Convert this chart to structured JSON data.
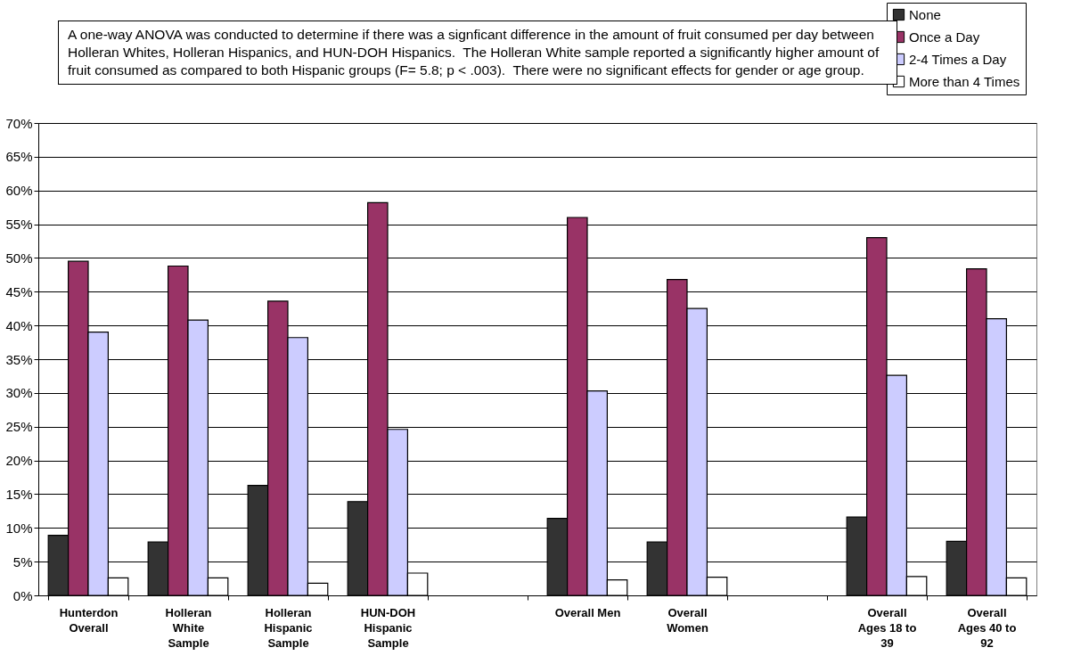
{
  "chart_data": {
    "type": "bar",
    "categories": [
      "Hunterdon Overall",
      "Holleran White Sample",
      "Holleran Hispanic Sample",
      "HUN-DOH Hispanic Sample",
      null,
      "Overall Men",
      "Overall Women",
      null,
      "Overall Ages 18 to 39",
      "Overall Ages 40 to 92"
    ],
    "series": [
      {
        "name": "None",
        "color": "#333333",
        "values": [
          8.9,
          7.9,
          16.3,
          13.9,
          null,
          11.4,
          7.9,
          null,
          11.6,
          8.0
        ]
      },
      {
        "name": "Once a Day",
        "color": "#993366",
        "values": [
          49.5,
          48.8,
          43.6,
          58.2,
          null,
          56.0,
          46.8,
          null,
          53.0,
          48.4
        ]
      },
      {
        "name": "2-4 Times a Day",
        "color": "#ccccff",
        "values": [
          39.0,
          40.8,
          38.2,
          24.6,
          null,
          30.3,
          42.5,
          null,
          32.6,
          41.0
        ]
      },
      {
        "name": "More than 4 Times",
        "color": "#ffffff",
        "values": [
          2.6,
          2.6,
          1.8,
          3.3,
          null,
          2.3,
          2.7,
          null,
          2.8,
          2.6
        ]
      }
    ],
    "ylim": [
      0,
      70
    ],
    "yticks": [
      {
        "value": 0,
        "label": "0%"
      },
      {
        "value": 5,
        "label": "5%"
      },
      {
        "value": 10,
        "label": "10%"
      },
      {
        "value": 15,
        "label": "15%"
      },
      {
        "value": 20,
        "label": "20%"
      },
      {
        "value": 25,
        "label": "25%"
      },
      {
        "value": 30,
        "label": "30%"
      },
      {
        "value": 35,
        "label": "35%"
      },
      {
        "value": 40,
        "label": "40%"
      },
      {
        "value": 45,
        "label": "45%"
      },
      {
        "value": 50,
        "label": "50%"
      },
      {
        "value": 55,
        "label": "55%"
      },
      {
        "value": 60,
        "label": "60%"
      },
      {
        "value": 65,
        "label": "65%"
      },
      {
        "value": 70,
        "label": "70%"
      }
    ],
    "grid": "y",
    "legend": "top right",
    "annotations": [
      "A one-way ANOVA was conducted to determine if there was a signficant difference in the amount of fruit consumed per day between Holleran Whites, Holleran Hispanics, and HUN-DOH Hispanics.  The Holleran White sample reported a significantly higher amount of fruit consumed as compared to both Hispanic groups (F= 5.8; p < .003).  There were no significant effects for gender or age group."
    ]
  }
}
